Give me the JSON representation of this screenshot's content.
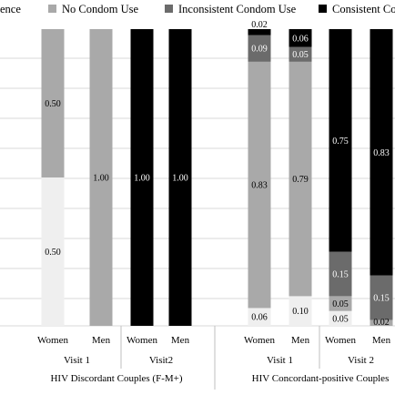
{
  "chart_data": {
    "type": "bar",
    "stacked": true,
    "legend_position": "top",
    "legend": [
      {
        "key": "abstinence",
        "label": "ence",
        "color": "#efefef"
      },
      {
        "key": "no_condom",
        "label": "No Condom Use",
        "color": "#a9a9a9"
      },
      {
        "key": "inconsistent",
        "label": "Inconsistent Condom Use",
        "color": "#6b6b6b"
      },
      {
        "key": "consistent",
        "label": "Consistent Co",
        "color": "#000000"
      }
    ],
    "ylim": [
      0,
      1
    ],
    "grid": true,
    "groups": [
      {
        "label": "HIV Discordant Couples (F-M+)",
        "visits": [
          {
            "label": "Visit 1",
            "bars": [
              {
                "category": "Women",
                "segments": [
                  {
                    "key": "abstinence",
                    "value": 0.5,
                    "label": "0.50"
                  },
                  {
                    "key": "no_condom",
                    "value": 0.5,
                    "label": "0.50"
                  }
                ]
              },
              {
                "category": "Men",
                "segments": [
                  {
                    "key": "no_condom",
                    "value": 1.0,
                    "label": "1.00"
                  }
                ]
              }
            ]
          },
          {
            "label": "Visit2",
            "bars": [
              {
                "category": "Women",
                "segments": [
                  {
                    "key": "consistent",
                    "value": 1.0,
                    "label": "1.00"
                  }
                ]
              },
              {
                "category": "Men",
                "segments": [
                  {
                    "key": "consistent",
                    "value": 1.0,
                    "label": "1.00"
                  }
                ]
              }
            ]
          }
        ]
      },
      {
        "label": "HIV Concordant-positive Couples",
        "visits": [
          {
            "label": "Visit 1",
            "bars": [
              {
                "category": "Women",
                "segments": [
                  {
                    "key": "abstinence",
                    "value": 0.06,
                    "label": "0.06"
                  },
                  {
                    "key": "no_condom",
                    "value": 0.83,
                    "label": "0.83"
                  },
                  {
                    "key": "inconsistent",
                    "value": 0.09,
                    "label": "0.09"
                  },
                  {
                    "key": "consistent",
                    "value": 0.02,
                    "label": "0.02"
                  }
                ]
              },
              {
                "category": "Men",
                "segments": [
                  {
                    "key": "abstinence",
                    "value": 0.1,
                    "label": "0.10"
                  },
                  {
                    "key": "no_condom",
                    "value": 0.79,
                    "label": "0.79"
                  },
                  {
                    "key": "inconsistent",
                    "value": 0.05,
                    "label": "0.05"
                  },
                  {
                    "key": "consistent",
                    "value": 0.06,
                    "label": "0.06"
                  }
                ]
              }
            ]
          },
          {
            "label": "Visit 2",
            "bars": [
              {
                "category": "Women",
                "segments": [
                  {
                    "key": "abstinence",
                    "value": 0.05,
                    "label": "0.05"
                  },
                  {
                    "key": "no_condom",
                    "value": 0.05,
                    "label": "0.05"
                  },
                  {
                    "key": "inconsistent",
                    "value": 0.15,
                    "label": "0.15"
                  },
                  {
                    "key": "consistent",
                    "value": 0.75,
                    "label": "0.75"
                  }
                ]
              },
              {
                "category": "Men",
                "segments": [
                  {
                    "key": "no_condom",
                    "value": 0.02,
                    "label": "0.02"
                  },
                  {
                    "key": "inconsistent",
                    "value": 0.15,
                    "label": "0.15"
                  },
                  {
                    "key": "consistent",
                    "value": 0.83,
                    "label": "0.83"
                  }
                ]
              }
            ]
          }
        ]
      }
    ]
  }
}
